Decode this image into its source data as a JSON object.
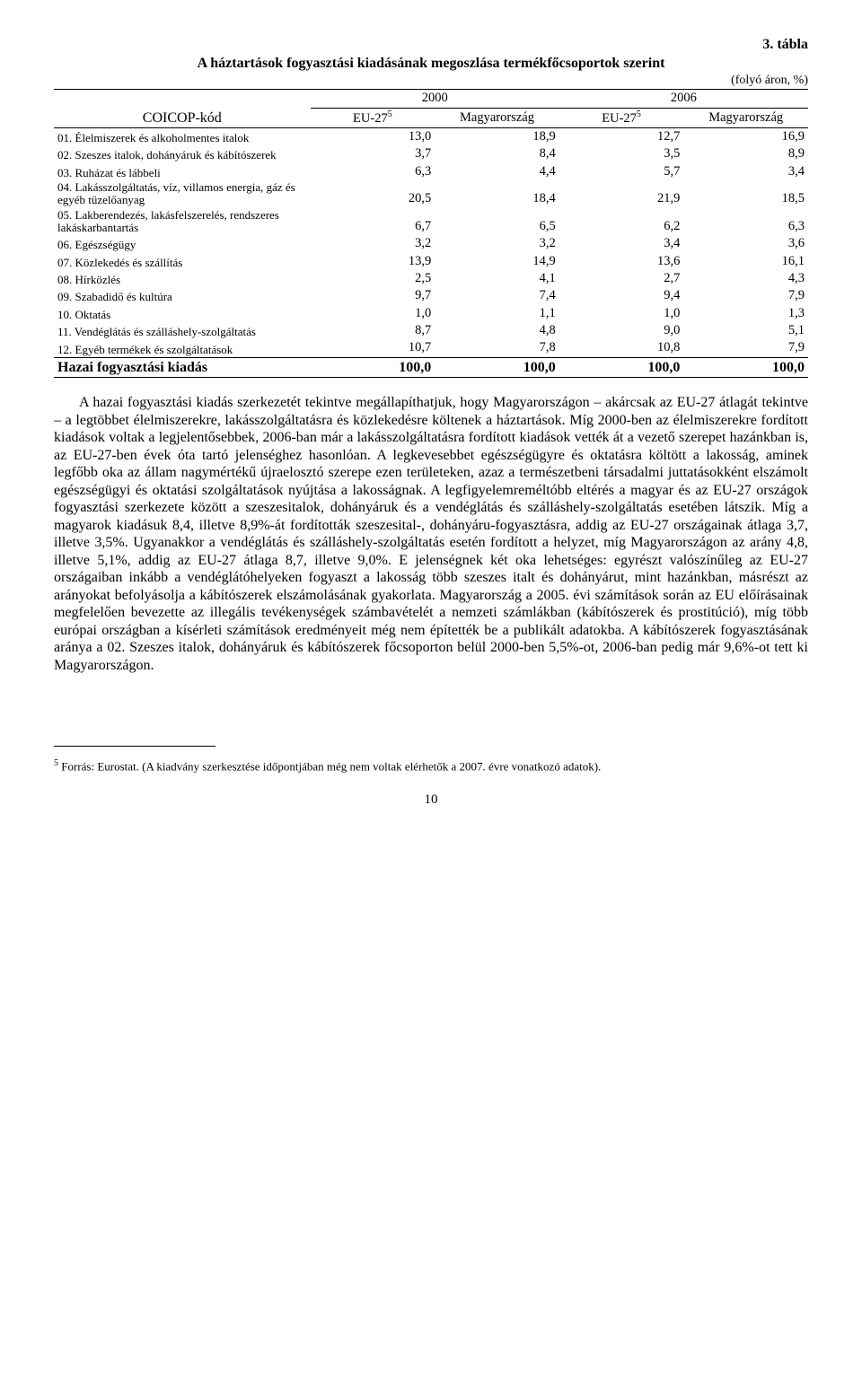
{
  "table": {
    "number": "3. tábla",
    "title": "A háztartások fogyasztási kiadásának megoszlása termékfőcsoportok szerint",
    "unit": "(folyó áron, %)",
    "coicop_label": "COICOP-kód",
    "year_groups": [
      "2000",
      "2006"
    ],
    "subcols": [
      "EU-27",
      "Magyarország",
      "EU-27",
      "Magyarország"
    ],
    "sup": "5",
    "rows": [
      {
        "label": "01. Élelmiszerek és alkoholmentes italok",
        "vals": [
          "13,0",
          "18,9",
          "12,7",
          "16,9"
        ],
        "small": true
      },
      {
        "label": "02. Szeszes italok, dohányáruk és kábítószerek",
        "vals": [
          "3,7",
          "8,4",
          "3,5",
          "8,9"
        ],
        "small": true
      },
      {
        "label": "03. Ruházat és lábbeli",
        "vals": [
          "6,3",
          "4,4",
          "5,7",
          "3,4"
        ],
        "small": true
      },
      {
        "label": "04. Lakásszolgáltatás, víz, villamos energia, gáz és egyéb tüzelőanyag",
        "vals": [
          "20,5",
          "18,4",
          "21,9",
          "18,5"
        ],
        "small": true
      },
      {
        "label": "05. Lakberendezés, lakásfelszerelés, rendszeres lakáskarbantartás",
        "vals": [
          "6,7",
          "6,5",
          "6,2",
          "6,3"
        ],
        "small": true
      },
      {
        "label": "06. Egészségügy",
        "vals": [
          "3,2",
          "3,2",
          "3,4",
          "3,6"
        ],
        "small": true
      },
      {
        "label": "07. Közlekedés és szállítás",
        "vals": [
          "13,9",
          "14,9",
          "13,6",
          "16,1"
        ],
        "small": true
      },
      {
        "label": "08. Hírközlés",
        "vals": [
          "2,5",
          "4,1",
          "2,7",
          "4,3"
        ],
        "small": true
      },
      {
        "label": "09. Szabadidő és kultúra",
        "vals": [
          "9,7",
          "7,4",
          "9,4",
          "7,9"
        ],
        "small": true
      },
      {
        "label": "10. Oktatás",
        "vals": [
          "1,0",
          "1,1",
          "1,0",
          "1,3"
        ],
        "small": true
      },
      {
        "label": "11. Vendéglátás és szálláshely-szolgáltatás",
        "vals": [
          "8,7",
          "4,8",
          "9,0",
          "5,1"
        ],
        "small": true
      },
      {
        "label": "12. Egyéb termékek és szolgáltatások",
        "vals": [
          "10,7",
          "7,8",
          "10,8",
          "7,9"
        ],
        "small": true
      }
    ],
    "total": {
      "label": "Hazai fogyasztási kiadás",
      "vals": [
        "100,0",
        "100,0",
        "100,0",
        "100,0"
      ]
    }
  },
  "paragraph": "A hazai fogyasztási kiadás szerkezetét tekintve megállapíthatjuk, hogy Magyarországon – akárcsak az EU-27 átlagát tekintve – a legtöbbet élelmiszerekre, lakásszolgáltatásra és közlekedésre költenek a háztartások. Míg 2000-ben az élelmiszerekre fordított kiadások voltak a legjelentősebbek, 2006-ban már a lakásszolgáltatásra fordított kiadások vették át a vezető szerepet hazánkban is, az EU-27-ben évek óta tartó jelenséghez hasonlóan. A legkevesebbet egészségügyre és oktatásra költött a lakosság, aminek legfőbb oka az állam nagymértékű újraelosztó szerepe ezen területeken, azaz a természetbeni társadalmi juttatásokként elszámolt egészségügyi és oktatási szolgáltatások nyújtása a lakosságnak. A legfigyelemreméltóbb eltérés a magyar és az EU-27 országok fogyasztási szerkezete között a szeszesitalok, dohányáruk és a vendéglátás és szálláshely-szolgáltatás esetében látszik. Míg a magyarok kiadásuk 8,4, illetve 8,9%-át fordították szeszesital-, dohányáru-fogyasztásra, addig az EU-27 országainak átlaga 3,7, illetve 3,5%. Ugyanakkor a vendéglátás és szálláshely-szolgáltatás esetén fordított a helyzet, míg Magyarországon az arány 4,8, illetve 5,1%, addig az EU-27 átlaga 8,7, illetve 9,0%. E jelenségnek két oka lehetséges: egyrészt valószínűleg az EU-27 országaiban inkább a vendéglátóhelyeken fogyaszt a lakosság több szeszes italt és dohányárut, mint hazánkban, másrészt az arányokat befolyásolja a kábítószerek elszámolásának gyakorlata. Magyarország a 2005. évi számítások során az EU előírásainak megfelelően bevezette az illegális tevékenységek számbavételét a nemzeti számlákban (kábítószerek és prostitúció), míg több európai országban a kísérleti számítások eredményeit még nem építették be a publikált adatokba. A kábítószerek fogyasztásának aránya a 02. Szeszes italok, dohányáruk és kábítószerek főcsoporton belül 2000-ben 5,5%-ot, 2006-ban pedig már 9,6%-ot tett ki Magyarországon.",
  "footnote": " Forrás: Eurostat. (A kiadvány szerkesztése időpontjában még nem voltak elérhetők a 2007. évre vonatkozó adatok).",
  "footnote_sup": "5",
  "page_number": "10"
}
